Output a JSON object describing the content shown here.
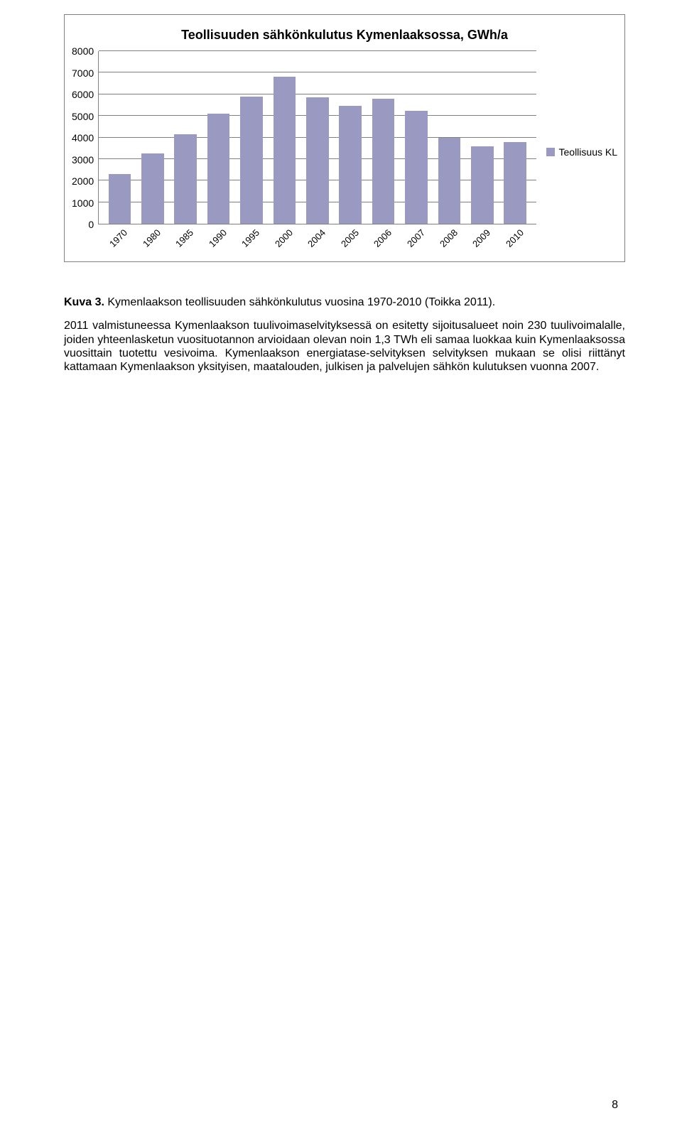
{
  "chart": {
    "type": "bar",
    "title": "Teollisuuden sähkönkulutus Kymenlaaksossa, GWh/a",
    "title_fontsize": 18,
    "title_color": "#000000",
    "categories": [
      "1970",
      "1980",
      "1985",
      "1990",
      "1995",
      "2000",
      "2004",
      "2005",
      "2006",
      "2007",
      "2008",
      "2009",
      "2010"
    ],
    "values": [
      2300,
      3250,
      4150,
      5100,
      5900,
      6800,
      5850,
      5450,
      5800,
      5250,
      4000,
      3600,
      3800
    ],
    "bar_color": "#9999c2",
    "ylim": [
      0,
      8000
    ],
    "ytick_step": 1000,
    "y_ticks": [
      "8000",
      "7000",
      "6000",
      "5000",
      "4000",
      "3000",
      "2000",
      "1000",
      "0"
    ],
    "grid_color": "#808080",
    "background_color": "#ffffff",
    "axis_fontsize": 14,
    "xaxis_rotation": -45,
    "legend": {
      "label": "Teollisuus KL",
      "swatch_color": "#9999c2",
      "position": "right-middle"
    }
  },
  "caption": {
    "label": "Kuva 3.",
    "text": "Kymenlaakson teollisuuden sähkönkulutus vuosina 1970-2010 (Toikka 2011)."
  },
  "body": "2011 valmistuneessa Kymenlaakson tuulivoimaselvityksessä on esitetty sijoitusalueet noin 230 tuulivoimalalle, joiden yhteenlasketun vuosituotannon arvioidaan olevan noin 1,3 TWh eli samaa luokkaa kuin Kymenlaaksossa vuosittain tuotettu vesivoima. Kymenlaakson energiatase-selvityksen selvityksen mukaan se olisi riittänyt kattamaan Kymenlaakson yksityisen, maatalouden, julkisen ja palvelujen sähkön kulutuksen vuonna 2007.",
  "page_number": "8"
}
